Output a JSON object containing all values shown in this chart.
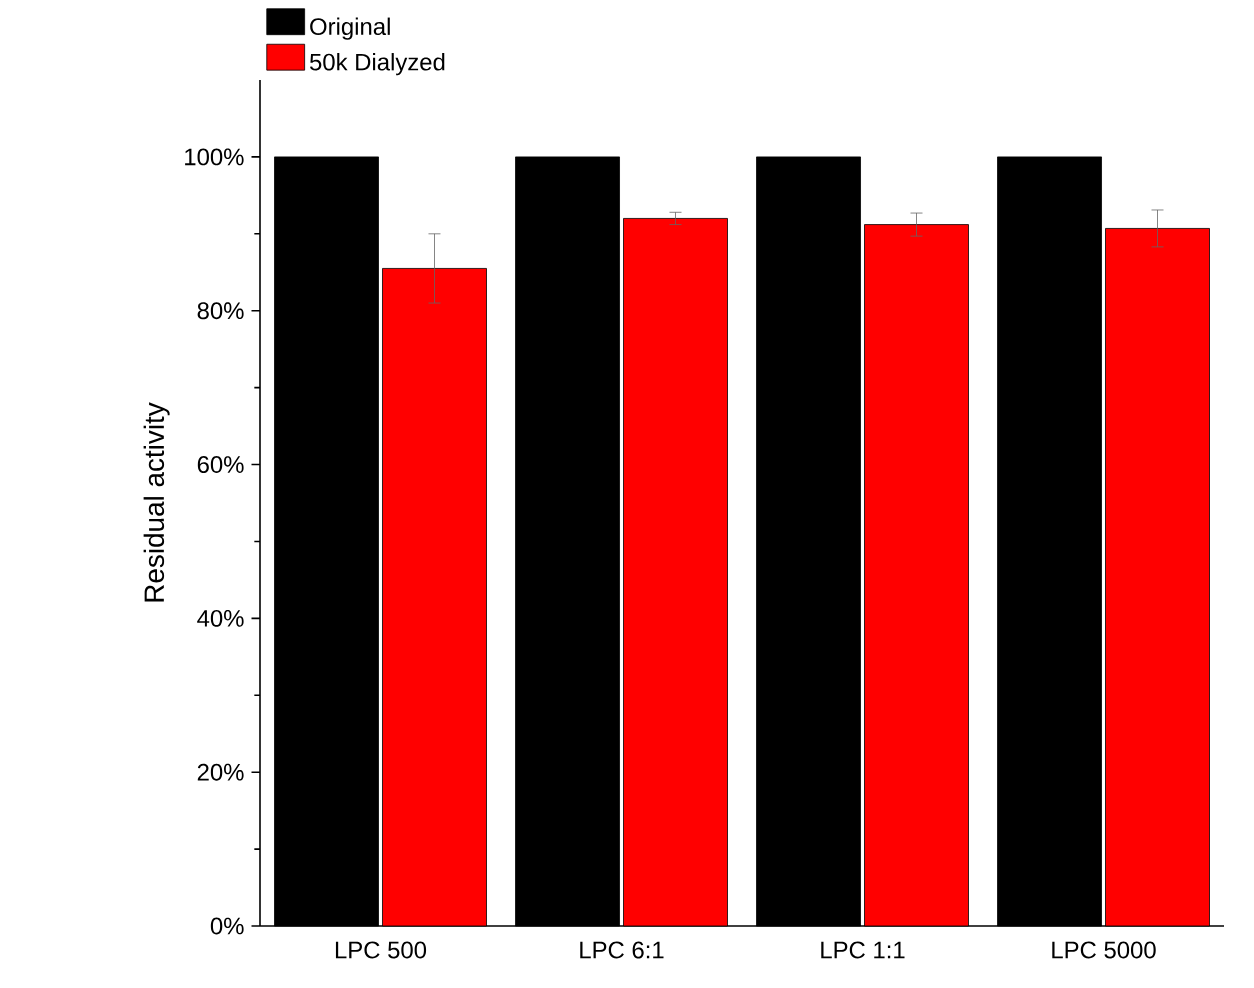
{
  "chart_data": {
    "type": "bar",
    "ylabel": "Residual activity",
    "categories": [
      "LPC 500",
      "LPC 6:1",
      "LPC 1:1",
      "LPC 5000"
    ],
    "series": [
      {
        "name": "Original",
        "color": "#000000",
        "values": [
          100,
          100,
          100,
          100
        ]
      },
      {
        "name": "50k Dialyzed",
        "color": "#ff0000",
        "values": [
          85.5,
          92.0,
          91.2,
          90.7
        ],
        "errors": [
          4.5,
          0.8,
          1.5,
          2.4
        ]
      }
    ],
    "ylim": [
      0,
      110
    ],
    "yticks": [
      {
        "value": 0,
        "label": "0%"
      },
      {
        "value": 20,
        "label": "20%"
      },
      {
        "value": 40,
        "label": "40%"
      },
      {
        "value": 60,
        "label": "60%"
      },
      {
        "value": 80,
        "label": "80%"
      },
      {
        "value": 100,
        "label": "100%"
      }
    ],
    "grid": false,
    "legend": "top left"
  }
}
